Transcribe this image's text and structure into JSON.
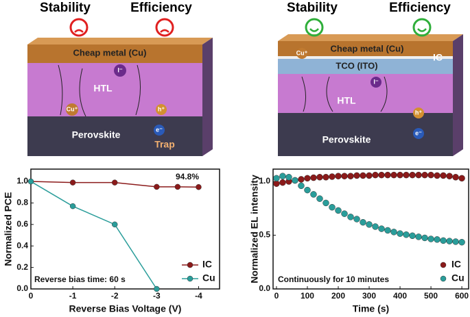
{
  "left_panel": {
    "stability": "Stability",
    "efficiency": "Efficiency",
    "metal": "Cheap metal (Cu)",
    "htl": "HTL",
    "perovskite": "Perovskite",
    "trap": "Trap",
    "cu_ion": "Cu⁺",
    "iodide": "I⁻",
    "hole": "h⁺",
    "electron": "e⁻"
  },
  "right_panel": {
    "stability": "Stability",
    "efficiency": "Efficiency",
    "metal": "Cheap metal (Cu)",
    "tco": "TCO (ITO)",
    "ic": "IC",
    "htl": "HTL",
    "perovskite": "Perovskite",
    "cu_ion": "Cu⁺",
    "iodide": "I⁻",
    "hole": "h⁺",
    "electron": "e⁻"
  },
  "chart_data": [
    {
      "type": "line",
      "x_label": "Reverse Bias Voltage (V)",
      "y_label": "Normalized PCE",
      "annotations": [
        "94.8%",
        "Reverse bias time: 60 s"
      ],
      "xlim": [
        0,
        -4.5
      ],
      "xticks": [
        0,
        -1,
        -2,
        -3,
        -4
      ],
      "ylim": [
        0,
        1.115
      ],
      "yticks": [
        {
          "value": 0,
          "label": "0.0"
        },
        0.2,
        0.4,
        0.6,
        0.8,
        {
          "value": 1,
          "label": "1.0"
        }
      ],
      "legend": "lower right",
      "series": [
        {
          "name": "IC",
          "color": "#8b1a1a",
          "x": [
            0,
            -1,
            -2,
            -3,
            -3.5,
            -4
          ],
          "values": [
            1.0,
            0.99,
            0.99,
            0.95,
            0.95,
            0.948
          ]
        },
        {
          "name": "Cu",
          "color": "#2a9d9a",
          "x": [
            0,
            -1,
            -2,
            -3
          ],
          "values": [
            1.0,
            0.77,
            0.6,
            0.0
          ]
        }
      ]
    },
    {
      "type": "scatter",
      "x_label": "Time (s)",
      "y_label": "Normalized EL intensity",
      "annotations": [
        "Continuously for 10 minutes"
      ],
      "xlim": [
        -11,
        622
      ],
      "xticks": [
        0,
        100,
        200,
        300,
        400,
        500,
        600
      ],
      "ylim": [
        0,
        1.115
      ],
      "yticks": [
        {
          "value": 0,
          "label": "0.0"
        },
        0.5,
        {
          "value": 1,
          "label": "1.0"
        }
      ],
      "legend": "lower right",
      "x": [
        0,
        20,
        40,
        60,
        80,
        100,
        120,
        140,
        160,
        180,
        200,
        220,
        240,
        260,
        280,
        300,
        320,
        340,
        360,
        380,
        400,
        420,
        440,
        460,
        480,
        500,
        520,
        540,
        560,
        580,
        600
      ],
      "series": [
        {
          "name": "IC",
          "color": "#8b1a1a",
          "values": [
            0.98,
            0.99,
            1.0,
            1.01,
            1.02,
            1.03,
            1.035,
            1.04,
            1.04,
            1.045,
            1.05,
            1.05,
            1.05,
            1.055,
            1.055,
            1.055,
            1.06,
            1.06,
            1.06,
            1.06,
            1.06,
            1.06,
            1.06,
            1.06,
            1.06,
            1.06,
            1.055,
            1.055,
            1.05,
            1.04,
            1.03
          ]
        },
        {
          "name": "Cu",
          "color": "#2a9d9a",
          "values": [
            1.03,
            1.05,
            1.04,
            1.01,
            0.96,
            0.92,
            0.88,
            0.84,
            0.8,
            0.76,
            0.73,
            0.7,
            0.67,
            0.65,
            0.62,
            0.6,
            0.58,
            0.56,
            0.545,
            0.53,
            0.515,
            0.505,
            0.495,
            0.485,
            0.475,
            0.465,
            0.46,
            0.45,
            0.445,
            0.44,
            0.435
          ]
        }
      ]
    }
  ]
}
